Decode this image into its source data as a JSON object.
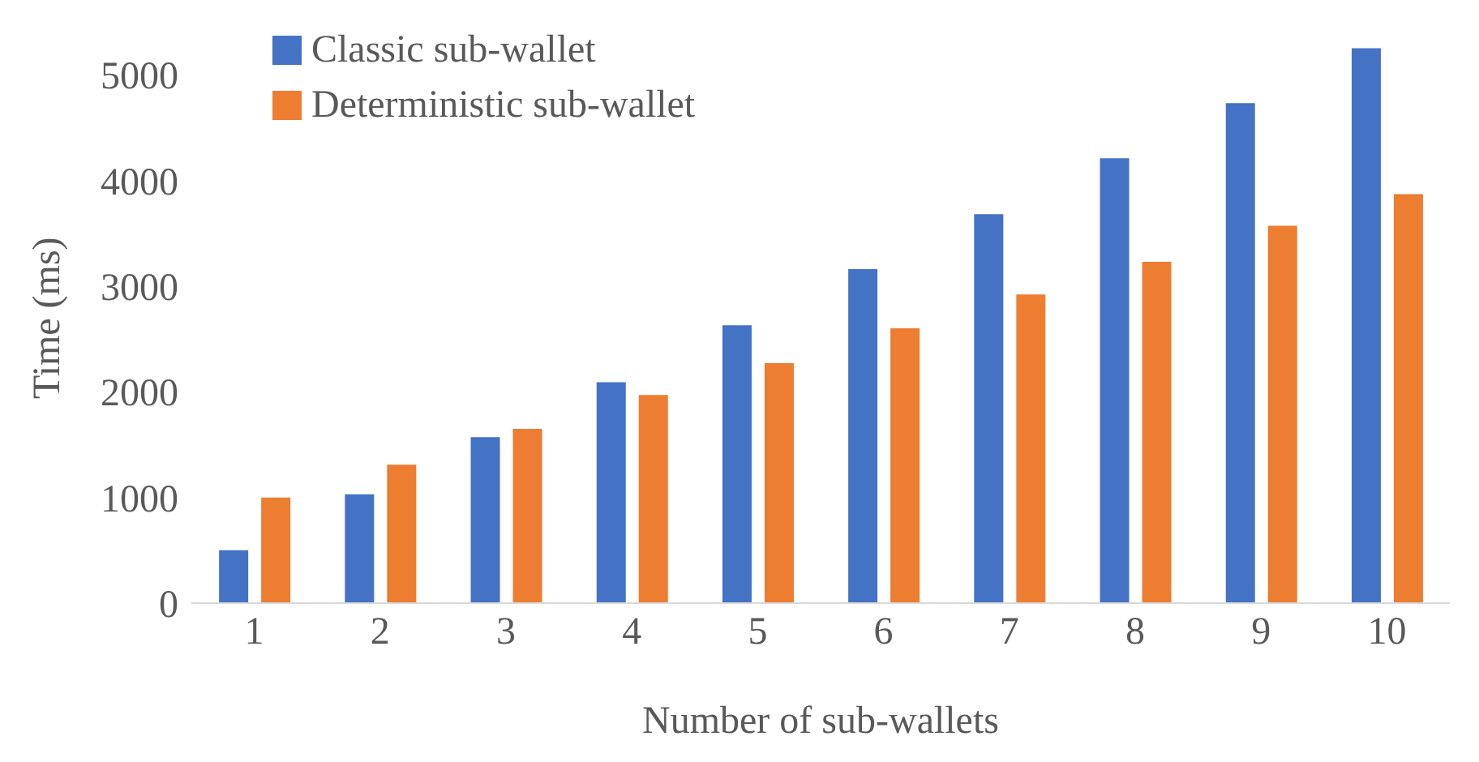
{
  "chart_data": {
    "type": "bar",
    "xlabel": "Number of sub-wallets",
    "ylabel": "Time (ms)",
    "categories": [
      "1",
      "2",
      "3",
      "4",
      "5",
      "6",
      "7",
      "8",
      "9",
      "10"
    ],
    "series": [
      {
        "name": "Classic sub-wallet",
        "color": "#4472c4",
        "values": [
          500,
          1030,
          1570,
          2090,
          2630,
          3160,
          3680,
          4210,
          4730,
          5250
        ]
      },
      {
        "name": "Deterministic sub-wallet",
        "color": "#ed7d31",
        "values": [
          1000,
          1310,
          1650,
          1970,
          2270,
          2600,
          2920,
          3230,
          3570,
          3870
        ]
      }
    ],
    "ylim": [
      0,
      5400
    ],
    "yticks": [
      0,
      1000,
      2000,
      3000,
      4000,
      5000
    ],
    "grid": false,
    "legend": "top left"
  }
}
